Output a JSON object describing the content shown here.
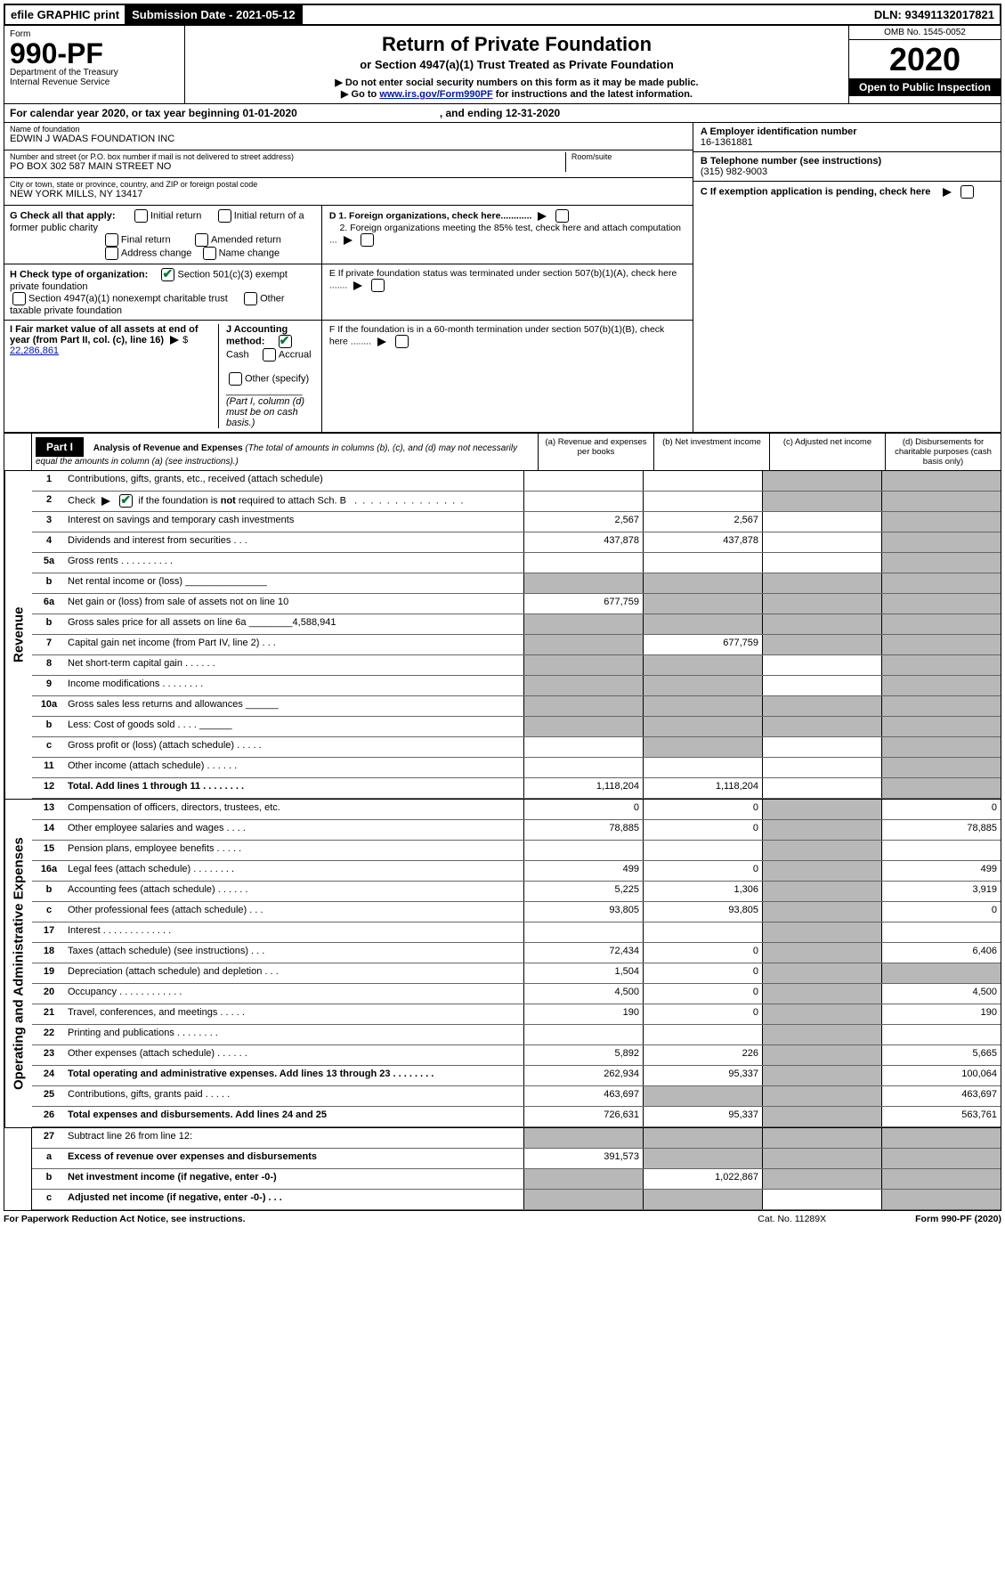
{
  "topbar": {
    "efile": "efile GRAPHIC print",
    "submission": "Submission Date - 2021-05-12",
    "dln": "DLN: 93491132017821"
  },
  "header": {
    "form_word": "Form",
    "form_number": "990-PF",
    "dept": "Department of the Treasury",
    "irs": "Internal Revenue Service",
    "title": "Return of Private Foundation",
    "subtitle": "or Section 4947(a)(1) Trust Treated as Private Foundation",
    "instr1": "▶ Do not enter social security numbers on this form as it may be made public.",
    "instr2": "▶ Go to ",
    "instr2_link": "www.irs.gov/Form990PF",
    "instr2_tail": " for instructions and the latest information.",
    "omb": "OMB No. 1545-0052",
    "year": "2020",
    "open": "Open to Public Inspection"
  },
  "cal": {
    "text1": "For calendar year 2020, or tax year beginning 01-01-2020",
    "text2": ", and ending 12-31-2020"
  },
  "id": {
    "name_label": "Name of foundation",
    "name": "EDWIN J WADAS FOUNDATION INC",
    "addr_label": "Number and street (or P.O. box number if mail is not delivered to street address)",
    "addr": "PO BOX 302 587 MAIN STREET NO",
    "room_label": "Room/suite",
    "city_label": "City or town, state or province, country, and ZIP or foreign postal code",
    "city": "NEW YORK MILLS, NY  13417",
    "a_label": "A Employer identification number",
    "a_val": "16-1361881",
    "b_label": "B Telephone number (see instructions)",
    "b_val": "(315) 982-9003",
    "c_label": "C If exemption application is pending, check here"
  },
  "g": {
    "label": "G Check all that apply:",
    "initial": "Initial return",
    "initial_former": "Initial return of a former public charity",
    "final": "Final return",
    "amended": "Amended return",
    "addr_change": "Address change",
    "name_change": "Name change"
  },
  "h": {
    "label": "H Check type of organization:",
    "opt1": "Section 501(c)(3) exempt private foundation",
    "opt2": "Section 4947(a)(1) nonexempt charitable trust",
    "opt3": "Other taxable private foundation"
  },
  "i": {
    "label": "I Fair market value of all assets at end of year (from Part II, col. (c), line 16) ",
    "val": "22,286,861"
  },
  "j": {
    "label": "J Accounting method:",
    "cash": "Cash",
    "accrual": "Accrual",
    "other": "Other (specify)",
    "note": "(Part I, column (d) must be on cash basis.)"
  },
  "d": {
    "d1": "D 1. Foreign organizations, check here............",
    "d2": "2. Foreign organizations meeting the 85% test, check here and attach computation ..."
  },
  "e": {
    "text": "E   If private foundation status was terminated under section 507(b)(1)(A), check here ......."
  },
  "f": {
    "text": "F   If the foundation is in a 60-month termination under section 507(b)(1)(B), check here ........"
  },
  "part1": {
    "label": "Part I",
    "title": "Analysis of Revenue and Expenses",
    "title_note": " (The total of amounts in columns (b), (c), and (d) may not necessarily equal the amounts in column (a) (see instructions).)",
    "cols": {
      "a": "(a)     Revenue and expenses per books",
      "b": "(b)   Net investment income",
      "c": "(c)   Adjusted net income",
      "d": "(d)   Disbursements for charitable purposes (cash basis only)"
    }
  },
  "side": {
    "rev": "Revenue",
    "exp": "Operating and Administrative Expenses"
  },
  "rows": [
    {
      "n": "1",
      "d": "Contributions, gifts, grants, etc., received (attach schedule)",
      "a": "",
      "b": "",
      "c": "g",
      "dcol": "g"
    },
    {
      "n": "2",
      "d": "Check ▶ [✔] if the foundation is not required to attach Sch. B",
      "a": "",
      "b": "",
      "c": "g",
      "dcol": "g",
      "checked": true,
      "special": "notreq"
    },
    {
      "n": "3",
      "d": "Interest on savings and temporary cash investments",
      "a": "2,567",
      "b": "2,567",
      "c": "",
      "dcol": "g"
    },
    {
      "n": "4",
      "d": "Dividends and interest from securities   .   .   .",
      "a": "437,878",
      "b": "437,878",
      "c": "",
      "dcol": "g"
    },
    {
      "n": "5a",
      "d": "Gross rents    .   .   .   .   .   .   .   .   .   .",
      "a": "",
      "b": "",
      "c": "",
      "dcol": "g"
    },
    {
      "n": "b",
      "d": "Net rental income or (loss)   _______________",
      "a": "g",
      "b": "g",
      "c": "g",
      "dcol": "g"
    },
    {
      "n": "6a",
      "d": "Net gain or (loss) from sale of assets not on line 10",
      "a": "677,759",
      "b": "g",
      "c": "g",
      "dcol": "g"
    },
    {
      "n": "b",
      "d": "Gross sales price for all assets on line 6a ________4,588,941",
      "a": "g",
      "b": "g",
      "c": "g",
      "dcol": "g"
    },
    {
      "n": "7",
      "d": "Capital gain net income (from Part IV, line 2)   .   .   .",
      "a": "g",
      "b": "677,759",
      "c": "g",
      "dcol": "g"
    },
    {
      "n": "8",
      "d": "Net short-term capital gain   .   .   .   .   .   .",
      "a": "g",
      "b": "g",
      "c": "",
      "dcol": "g"
    },
    {
      "n": "9",
      "d": "Income modifications   .   .   .   .   .   .   .   .",
      "a": "g",
      "b": "g",
      "c": "",
      "dcol": "g"
    },
    {
      "n": "10a",
      "d": "Gross sales less returns and allowances  ______",
      "a": "g",
      "b": "g",
      "c": "g",
      "dcol": "g"
    },
    {
      "n": "b",
      "d": "Less: Cost of goods sold       .   .   .   .   ______",
      "a": "g",
      "b": "g",
      "c": "g",
      "dcol": "g"
    },
    {
      "n": "c",
      "d": "Gross profit or (loss) (attach schedule)   .   .   .   .   .",
      "a": "",
      "b": "g",
      "c": "",
      "dcol": "g"
    },
    {
      "n": "11",
      "d": "Other income (attach schedule)    .   .   .   .   .   .",
      "a": "",
      "b": "",
      "c": "",
      "dcol": "g"
    },
    {
      "n": "12",
      "d": "Total. Add lines 1 through 11    .   .   .   .   .   .   .   .",
      "a": "1,118,204",
      "b": "1,118,204",
      "c": "",
      "dcol": "g",
      "bold": true
    }
  ],
  "erows": [
    {
      "n": "13",
      "d": "Compensation of officers, directors, trustees, etc.",
      "a": "0",
      "b": "0",
      "c": "g",
      "dcol": "0"
    },
    {
      "n": "14",
      "d": "Other employee salaries and wages    .   .   .   .",
      "a": "78,885",
      "b": "0",
      "c": "g",
      "dcol": "78,885"
    },
    {
      "n": "15",
      "d": "Pension plans, employee benefits   .   .   .   .   .",
      "a": "",
      "b": "",
      "c": "g",
      "dcol": ""
    },
    {
      "n": "16a",
      "d": "Legal fees (attach schedule)   .   .   .   .   .   .   .   .",
      "a": "499",
      "b": "0",
      "c": "g",
      "dcol": "499"
    },
    {
      "n": "b",
      "d": "Accounting fees (attach schedule)   .   .   .   .   .   .",
      "a": "5,225",
      "b": "1,306",
      "c": "g",
      "dcol": "3,919"
    },
    {
      "n": "c",
      "d": "Other professional fees (attach schedule)     .   .   .",
      "a": "93,805",
      "b": "93,805",
      "c": "g",
      "dcol": "0"
    },
    {
      "n": "17",
      "d": "Interest   .   .   .   .   .   .   .   .   .   .   .   .   .",
      "a": "",
      "b": "",
      "c": "g",
      "dcol": ""
    },
    {
      "n": "18",
      "d": "Taxes (attach schedule) (see instructions)    .   .   .",
      "a": "72,434",
      "b": "0",
      "c": "g",
      "dcol": "6,406"
    },
    {
      "n": "19",
      "d": "Depreciation (attach schedule) and depletion   .   .   .",
      "a": "1,504",
      "b": "0",
      "c": "g",
      "dcol": "g"
    },
    {
      "n": "20",
      "d": "Occupancy  .   .   .   .   .   .   .   .   .   .   .   .",
      "a": "4,500",
      "b": "0",
      "c": "g",
      "dcol": "4,500"
    },
    {
      "n": "21",
      "d": "Travel, conferences, and meetings   .   .   .   .   .",
      "a": "190",
      "b": "0",
      "c": "g",
      "dcol": "190"
    },
    {
      "n": "22",
      "d": "Printing and publications   .   .   .   .   .   .   .   .",
      "a": "",
      "b": "",
      "c": "g",
      "dcol": ""
    },
    {
      "n": "23",
      "d": "Other expenses (attach schedule)   .   .   .   .   .   .",
      "a": "5,892",
      "b": "226",
      "c": "g",
      "dcol": "5,665"
    },
    {
      "n": "24",
      "d": "Total operating and administrative expenses. Add lines 13 through 23   .   .   .   .   .   .   .   .",
      "a": "262,934",
      "b": "95,337",
      "c": "g",
      "dcol": "100,064",
      "bold": true
    },
    {
      "n": "25",
      "d": "Contributions, gifts, grants paid        .   .   .   .   .",
      "a": "463,697",
      "b": "g",
      "c": "g",
      "dcol": "463,697"
    },
    {
      "n": "26",
      "d": "Total expenses and disbursements. Add lines 24 and 25",
      "a": "726,631",
      "b": "95,337",
      "c": "g",
      "dcol": "563,761",
      "bold": true
    }
  ],
  "srows": [
    {
      "n": "27",
      "d": "Subtract line 26 from line 12:",
      "a": "g",
      "b": "g",
      "c": "g",
      "dcol": "g"
    },
    {
      "n": "a",
      "d": "Excess of revenue over expenses and disbursements",
      "a": "391,573",
      "b": "g",
      "c": "g",
      "dcol": "g",
      "bold": true
    },
    {
      "n": "b",
      "d": "Net investment income (if negative, enter -0-)",
      "a": "g",
      "b": "1,022,867",
      "c": "g",
      "dcol": "g",
      "bold": true
    },
    {
      "n": "c",
      "d": "Adjusted net income (if negative, enter -0-)   .   .   .",
      "a": "g",
      "b": "g",
      "c": "",
      "dcol": "g",
      "bold": true
    }
  ],
  "foot": {
    "left": "For Paperwork Reduction Act Notice, see instructions.",
    "mid": "Cat. No. 11289X",
    "right": "Form 990-PF (2020)"
  },
  "colors": {
    "grey": "#b8b8b8",
    "link": "#0016b8"
  }
}
